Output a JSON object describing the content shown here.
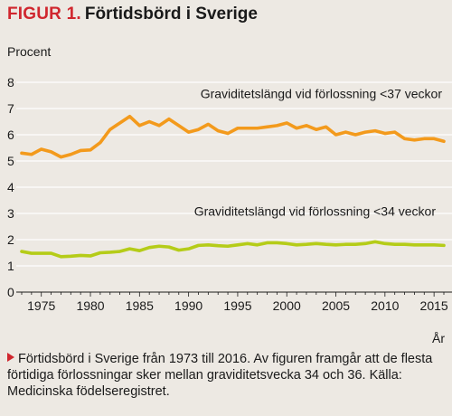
{
  "header": {
    "figure_label": "FIGUR 1.",
    "title": "Förtidsbörd i Sverige"
  },
  "caption": "Förtidsbörd i Sverige från 1973 till 2016. Av figuren framgår att de flesta förtidiga förlossningar sker mellan graviditetsvecka 34 och 36. Källa: Medicinska födelseregistret.",
  "chart_data": {
    "type": "line",
    "title": "Förtidsbörd i Sverige",
    "ylabel": "Procent",
    "xlabel": "År",
    "xlim": [
      1973,
      2016
    ],
    "ylim": [
      0,
      8
    ],
    "yticks": [
      0,
      1,
      2,
      3,
      4,
      5,
      6,
      7,
      8
    ],
    "xticks": [
      1975,
      1980,
      1985,
      1990,
      1995,
      2000,
      2005,
      2010,
      2015
    ],
    "grid": "horizontal",
    "x": [
      1973,
      1974,
      1975,
      1976,
      1977,
      1978,
      1979,
      1980,
      1981,
      1982,
      1983,
      1984,
      1985,
      1986,
      1987,
      1988,
      1989,
      1990,
      1991,
      1992,
      1993,
      1994,
      1995,
      1996,
      1997,
      1998,
      1999,
      2000,
      2001,
      2002,
      2003,
      2004,
      2005,
      2006,
      2007,
      2008,
      2009,
      2010,
      2011,
      2012,
      2013,
      2014,
      2015,
      2016
    ],
    "series": [
      {
        "name": "Graviditetslängd vid förlossning <37 veckor",
        "color": "#f39a1c",
        "values": [
          5.3,
          5.25,
          5.45,
          5.35,
          5.15,
          5.25,
          5.4,
          5.42,
          5.7,
          6.2,
          6.45,
          6.7,
          6.35,
          6.5,
          6.35,
          6.6,
          6.35,
          6.1,
          6.2,
          6.4,
          6.15,
          6.05,
          6.25,
          6.25,
          6.25,
          6.3,
          6.35,
          6.45,
          6.25,
          6.35,
          6.2,
          6.3,
          6.0,
          6.1,
          6.0,
          6.1,
          6.15,
          6.05,
          6.1,
          5.85,
          5.8,
          5.85,
          5.85,
          5.75
        ]
      },
      {
        "name": "Graviditetslängd vid förlossning <34 veckor",
        "color": "#b5cc18",
        "values": [
          1.55,
          1.48,
          1.48,
          1.48,
          1.35,
          1.37,
          1.4,
          1.38,
          1.5,
          1.52,
          1.55,
          1.65,
          1.58,
          1.7,
          1.75,
          1.72,
          1.6,
          1.65,
          1.78,
          1.8,
          1.77,
          1.75,
          1.8,
          1.85,
          1.8,
          1.88,
          1.88,
          1.85,
          1.8,
          1.82,
          1.85,
          1.82,
          1.8,
          1.82,
          1.82,
          1.85,
          1.92,
          1.85,
          1.82,
          1.82,
          1.8,
          1.8,
          1.8,
          1.78
        ]
      }
    ]
  }
}
